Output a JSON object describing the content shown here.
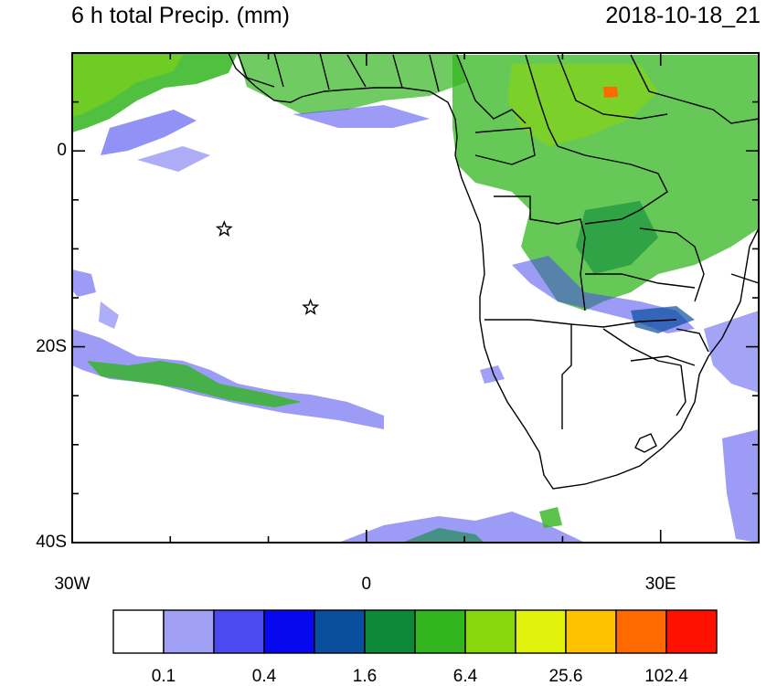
{
  "title": {
    "left": "6 h total Precip. (mm)",
    "right": "2018-10-18_21"
  },
  "axes": {
    "lon_range": [
      -30,
      40
    ],
    "lat_range": [
      -40,
      10
    ],
    "y_labels": [
      {
        "value": 0,
        "text": "0"
      },
      {
        "value": -20,
        "text": "20S"
      },
      {
        "value": -40,
        "text": "40S"
      }
    ],
    "x_labels": [
      {
        "value": -30,
        "text": "30W"
      },
      {
        "value": 0,
        "text": "0"
      },
      {
        "value": 30,
        "text": "30E"
      }
    ]
  },
  "markers": [
    {
      "name": "star-marker-1",
      "lon": -14.5,
      "lat": -8
    },
    {
      "name": "star-marker-2",
      "lon": -5.7,
      "lat": -16
    }
  ],
  "colorbar": {
    "colors": [
      "#ffffff",
      "#a0a0f5",
      "#4a4af0",
      "#0808ee",
      "#0a4f9e",
      "#0c8a3a",
      "#33b51f",
      "#88d60c",
      "#e1f20c",
      "#ffc200",
      "#ff6a00",
      "#ff1100"
    ],
    "labels": [
      "0.1",
      "0.4",
      "1.6",
      "6.4",
      "25.6",
      "102.4"
    ]
  }
}
